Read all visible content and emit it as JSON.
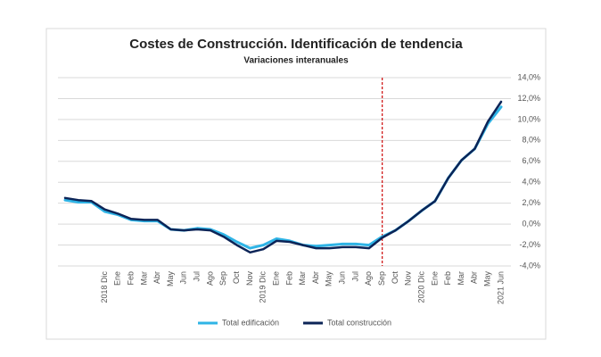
{
  "chart_data": {
    "type": "line",
    "title": "Costes de Construcción. Identificación de tendencia",
    "subtitle": "Variaciones interanuales",
    "categories": [
      null,
      null,
      null,
      "2018 Dic",
      "Ene",
      "Feb",
      "Mar",
      "Abr",
      "May",
      "Jun",
      "Jul",
      "Ago",
      "Sep",
      "Oct",
      "Nov",
      "2019 Dic",
      "Ene",
      "Feb",
      "Mar",
      "Abr",
      "May",
      "Jun",
      "Jul",
      "Ago",
      "Sep",
      "Oct",
      "Nov",
      "2020 Dic",
      "Ene",
      "Feb",
      "Mar",
      "Abr",
      "May",
      "2021 Jun"
    ],
    "series": [
      {
        "name": "Total edificación",
        "color": "#2fb4e6",
        "values": [
          2.3,
          2.1,
          2.1,
          1.2,
          0.9,
          0.4,
          0.3,
          0.3,
          -0.5,
          -0.6,
          -0.4,
          -0.5,
          -1.0,
          -1.7,
          -2.3,
          -2.0,
          -1.4,
          -1.6,
          -2.0,
          -2.1,
          -2.0,
          -1.9,
          -1.9,
          -2.0,
          -1.2,
          -0.6,
          0.3,
          1.3,
          2.2,
          4.4,
          6.1,
          7.2,
          9.6,
          11.2
        ]
      },
      {
        "name": "Total construcción",
        "color": "#0c2457",
        "values": [
          2.5,
          2.3,
          2.2,
          1.4,
          1.0,
          0.5,
          0.4,
          0.4,
          -0.5,
          -0.6,
          -0.5,
          -0.6,
          -1.2,
          -2.0,
          -2.7,
          -2.4,
          -1.6,
          -1.7,
          -2.0,
          -2.3,
          -2.3,
          -2.2,
          -2.2,
          -2.3,
          -1.3,
          -0.6,
          0.3,
          1.3,
          2.2,
          4.4,
          6.1,
          7.2,
          9.8,
          11.7
        ]
      }
    ],
    "ylim": [
      -4,
      14
    ],
    "yticks": [
      {
        "value": -4,
        "label": "-4,0%"
      },
      {
        "value": -2,
        "label": "-2,0%"
      },
      {
        "value": 0,
        "label": "0,0%"
      },
      {
        "value": 2,
        "label": "2,0%"
      },
      {
        "value": 4,
        "label": "4,0%"
      },
      {
        "value": 6,
        "label": "6,0%"
      },
      {
        "value": 8,
        "label": "8,0%"
      },
      {
        "value": 10,
        "label": "10,0%"
      },
      {
        "value": 12,
        "label": "12,0%"
      },
      {
        "value": 14,
        "label": "14,0%"
      }
    ],
    "yaxis_position": "right",
    "grid": true,
    "legend": "bottom",
    "reference_line": {
      "x_index": 24,
      "color": "#d11a1a",
      "style": "dashed"
    }
  }
}
